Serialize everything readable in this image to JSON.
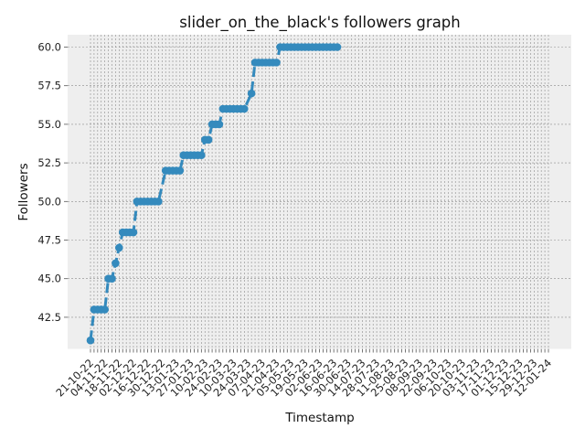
{
  "chart_data": {
    "type": "line",
    "title": "slider_on_the_black's followers graph",
    "xlabel": "Timestamp",
    "ylabel": "Followers",
    "ylim": [
      40.45,
      60.8
    ],
    "yticks": [
      "42.5",
      "45.0",
      "47.5",
      "50.0",
      "52.5",
      "55.0",
      "57.5",
      "60.0"
    ],
    "x": [
      "21-10-22",
      "24-10-22",
      "28-10-22",
      "31-10-22",
      "04-11-22",
      "07-11-22",
      "11-11-22",
      "14-11-22",
      "18-11-22",
      "21-11-22",
      "25-11-22",
      "28-11-22",
      "02-12-22",
      "05-12-22",
      "09-12-22",
      "12-12-22",
      "16-12-22",
      "19-12-22",
      "23-12-22",
      "26-12-22",
      "30-12-22",
      "02-01-23",
      "06-01-23",
      "09-01-23",
      "13-01-23",
      "16-01-23",
      "20-01-23",
      "23-01-23",
      "27-01-23",
      "30-01-23",
      "03-02-23",
      "06-02-23",
      "10-02-23",
      "13-02-23",
      "17-02-23",
      "20-02-23",
      "24-02-23",
      "27-02-23",
      "03-03-23",
      "06-03-23",
      "10-03-23",
      "13-03-23",
      "17-03-23",
      "20-03-23",
      "24-03-23",
      "27-03-23",
      "31-03-23",
      "03-04-23",
      "07-04-23",
      "10-04-23",
      "14-04-23",
      "17-04-23",
      "21-04-23",
      "24-04-23",
      "28-04-23",
      "01-05-23",
      "05-05-23",
      "08-05-23",
      "12-05-23",
      "15-05-23",
      "19-05-23",
      "22-05-23",
      "26-05-23",
      "29-05-23",
      "02-06-23",
      "05-06-23",
      "09-06-23",
      "12-06-23",
      "16-06-23",
      "19-06-23",
      "23-06-23",
      "26-06-23",
      "30-06-23",
      "03-07-23",
      "07-07-23",
      "10-07-23",
      "14-07-23",
      "17-07-23",
      "21-07-23",
      "24-07-23",
      "28-07-23",
      "31-07-23",
      "04-08-23",
      "07-08-23",
      "11-08-23",
      "14-08-23",
      "18-08-23",
      "21-08-23",
      "25-08-23",
      "28-08-23",
      "01-09-23",
      "04-09-23",
      "08-09-23",
      "11-09-23",
      "15-09-23",
      "18-09-23",
      "22-09-23",
      "25-09-23",
      "29-09-23",
      "02-10-23",
      "06-10-23",
      "09-10-23",
      "13-10-23",
      "16-10-23",
      "20-10-23",
      "23-10-23",
      "27-10-23",
      "30-10-23",
      "03-11-23",
      "06-11-23",
      "10-11-23",
      "13-11-23",
      "17-11-23",
      "20-11-23",
      "24-11-23",
      "27-11-23",
      "01-12-23",
      "04-12-23",
      "08-12-23",
      "11-12-23",
      "15-12-23",
      "18-12-23",
      "22-12-23",
      "25-12-23",
      "29-12-23",
      "01-01-24",
      "05-01-24",
      "08-01-24",
      "12-01-24"
    ],
    "xtick_labels": [
      "21-10-22",
      "04-11-22",
      "18-11-22",
      "02-12-22",
      "16-12-22",
      "30-12-22",
      "13-01-23",
      "27-01-23",
      "10-02-23",
      "24-02-23",
      "10-03-23",
      "24-03-23",
      "07-04-23",
      "21-04-23",
      "05-05-23",
      "19-05-23",
      "02-06-23",
      "16-06-23",
      "30-06-23",
      "14-07-23",
      "28-07-23",
      "11-08-23",
      "25-08-23",
      "08-09-23",
      "22-09-23",
      "06-10-23",
      "20-10-23",
      "03-11-23",
      "17-11-23",
      "01-12-23",
      "15-12-23",
      "29-12-23",
      "12-01-24"
    ],
    "points": [
      {
        "x": "21-10-22",
        "y": 41
      },
      {
        "x": "24-10-22",
        "y": 43
      },
      {
        "x": "28-10-22",
        "y": 43
      },
      {
        "x": "31-10-22",
        "y": 43
      },
      {
        "x": "04-11-22",
        "y": 43
      },
      {
        "x": "07-11-22",
        "y": 45
      },
      {
        "x": "11-11-22",
        "y": 45
      },
      {
        "x": "14-11-22",
        "y": 46
      },
      {
        "x": "18-11-22",
        "y": 47
      },
      {
        "x": "21-11-22",
        "y": 48
      },
      {
        "x": "25-11-22",
        "y": 48
      },
      {
        "x": "28-11-22",
        "y": 48
      },
      {
        "x": "02-12-22",
        "y": 48
      },
      {
        "x": "05-12-22",
        "y": 50
      },
      {
        "x": "09-12-22",
        "y": 50
      },
      {
        "x": "12-12-22",
        "y": 50
      },
      {
        "x": "16-12-22",
        "y": 50
      },
      {
        "x": "19-12-22",
        "y": 50
      },
      {
        "x": "23-12-22",
        "y": 50
      },
      {
        "x": "26-12-22",
        "y": 50
      },
      {
        "x": "02-01-23",
        "y": 52
      },
      {
        "x": "06-01-23",
        "y": 52
      },
      {
        "x": "09-01-23",
        "y": 52
      },
      {
        "x": "13-01-23",
        "y": 52
      },
      {
        "x": "16-01-23",
        "y": 52
      },
      {
        "x": "20-01-23",
        "y": 53
      },
      {
        "x": "23-01-23",
        "y": 53
      },
      {
        "x": "27-01-23",
        "y": 53
      },
      {
        "x": "30-01-23",
        "y": 53
      },
      {
        "x": "03-02-23",
        "y": 53
      },
      {
        "x": "06-02-23",
        "y": 53
      },
      {
        "x": "10-02-23",
        "y": 54
      },
      {
        "x": "13-02-23",
        "y": 54
      },
      {
        "x": "17-02-23",
        "y": 55
      },
      {
        "x": "20-02-23",
        "y": 55
      },
      {
        "x": "24-02-23",
        "y": 55
      },
      {
        "x": "27-02-23",
        "y": 56
      },
      {
        "x": "03-03-23",
        "y": 56
      },
      {
        "x": "06-03-23",
        "y": 56
      },
      {
        "x": "10-03-23",
        "y": 56
      },
      {
        "x": "13-03-23",
        "y": 56
      },
      {
        "x": "17-03-23",
        "y": 56
      },
      {
        "x": "20-03-23",
        "y": 56
      },
      {
        "x": "27-03-23",
        "y": 57
      },
      {
        "x": "31-03-23",
        "y": 59
      },
      {
        "x": "03-04-23",
        "y": 59
      },
      {
        "x": "07-04-23",
        "y": 59
      },
      {
        "x": "10-04-23",
        "y": 59
      },
      {
        "x": "14-04-23",
        "y": 59
      },
      {
        "x": "17-04-23",
        "y": 59
      },
      {
        "x": "21-04-23",
        "y": 59
      },
      {
        "x": "24-04-23",
        "y": 60
      },
      {
        "x": "28-04-23",
        "y": 60
      },
      {
        "x": "01-05-23",
        "y": 60
      },
      {
        "x": "05-05-23",
        "y": 60
      },
      {
        "x": "08-05-23",
        "y": 60
      },
      {
        "x": "12-05-23",
        "y": 60
      },
      {
        "x": "15-05-23",
        "y": 60
      },
      {
        "x": "19-05-23",
        "y": 60
      },
      {
        "x": "22-05-23",
        "y": 60
      },
      {
        "x": "26-05-23",
        "y": 60
      },
      {
        "x": "29-05-23",
        "y": 60
      },
      {
        "x": "02-06-23",
        "y": 60
      },
      {
        "x": "05-06-23",
        "y": 60
      },
      {
        "x": "09-06-23",
        "y": 60
      },
      {
        "x": "12-06-23",
        "y": 60
      },
      {
        "x": "16-06-23",
        "y": 60
      },
      {
        "x": "19-06-23",
        "y": 60
      }
    ],
    "grid": true,
    "line_style": "dashed",
    "marker": "circle",
    "colors": {
      "line": "#348abd",
      "plot_bg": "#eeeeee",
      "grid": "#8c8c8c"
    }
  }
}
